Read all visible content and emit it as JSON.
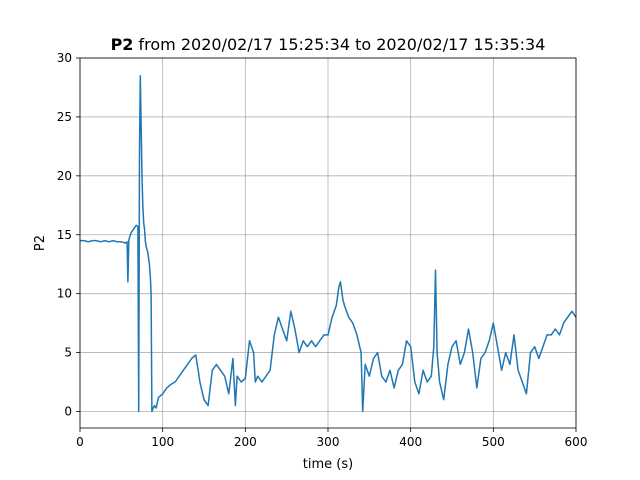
{
  "chart_data": {
    "type": "line",
    "title_bold": "P2",
    "title_rest": " from 2020/02/17 15:25:34 to 2020/02/17 15:35:34",
    "xlabel": "time (s)",
    "ylabel": "P2",
    "xlim": [
      0,
      600
    ],
    "ylim": [
      -1.4,
      30
    ],
    "x_ticks": [
      0,
      100,
      200,
      300,
      400,
      500,
      600
    ],
    "y_ticks": [
      0,
      5,
      10,
      15,
      20,
      25,
      30
    ],
    "grid": true,
    "line_color": "#1f77b4",
    "series": [
      {
        "x": [
          0,
          5,
          10,
          15,
          20,
          25,
          30,
          35,
          40,
          45,
          50,
          55,
          57,
          58,
          59,
          60,
          62,
          65,
          68,
          70,
          71,
          72,
          73,
          74,
          75,
          76,
          77,
          78,
          79,
          80,
          82,
          84,
          85,
          86,
          87,
          88,
          90,
          92,
          95,
          100,
          105,
          110,
          115,
          120,
          125,
          130,
          135,
          140,
          143,
          145,
          150,
          155,
          160,
          165,
          170,
          175,
          180,
          185,
          188,
          190,
          195,
          200,
          205,
          210,
          212,
          215,
          220,
          225,
          230,
          235,
          240,
          245,
          250,
          255,
          260,
          265,
          270,
          275,
          280,
          285,
          290,
          295,
          300,
          305,
          310,
          313,
          315,
          318,
          320,
          325,
          330,
          335,
          340,
          342,
          345,
          350,
          355,
          360,
          365,
          370,
          375,
          380,
          385,
          390,
          395,
          400,
          405,
          410,
          415,
          420,
          425,
          428,
          430,
          432,
          435,
          440,
          445,
          450,
          455,
          460,
          465,
          470,
          475,
          480,
          485,
          490,
          495,
          500,
          505,
          510,
          515,
          520,
          525,
          530,
          535,
          540,
          545,
          550,
          555,
          560,
          565,
          570,
          575,
          580,
          585,
          590,
          595,
          600
        ],
        "y": [
          14.5,
          14.5,
          14.4,
          14.5,
          14.5,
          14.4,
          14.5,
          14.4,
          14.5,
          14.4,
          14.4,
          14.3,
          14.4,
          11.0,
          14.5,
          14.8,
          15.2,
          15.5,
          15.8,
          15.7,
          0.0,
          22.0,
          28.5,
          24.0,
          20.0,
          17.5,
          16.0,
          15.5,
          14.5,
          14.0,
          13.5,
          12.5,
          11.5,
          10.0,
          0.0,
          0.2,
          0.5,
          0.3,
          1.2,
          1.5,
          2.0,
          2.3,
          2.5,
          3.0,
          3.5,
          4.0,
          4.5,
          4.8,
          3.5,
          2.5,
          1.0,
          0.5,
          3.5,
          4.0,
          3.5,
          3.0,
          1.5,
          4.5,
          0.5,
          3.0,
          2.5,
          2.8,
          6.0,
          5.0,
          2.5,
          3.0,
          2.5,
          3.0,
          3.5,
          6.5,
          8.0,
          7.0,
          6.0,
          8.5,
          7.0,
          5.0,
          6.0,
          5.5,
          6.0,
          5.5,
          6.0,
          6.5,
          6.5,
          8.0,
          9.0,
          10.5,
          11.0,
          9.5,
          9.0,
          8.0,
          7.5,
          6.5,
          5.0,
          0.0,
          4.0,
          3.0,
          4.5,
          5.0,
          3.0,
          2.5,
          3.5,
          2.0,
          3.5,
          4.0,
          6.0,
          5.5,
          2.5,
          1.5,
          3.5,
          2.5,
          3.0,
          5.5,
          12.0,
          5.0,
          2.5,
          1.0,
          4.0,
          5.5,
          6.0,
          4.0,
          5.0,
          7.0,
          5.0,
          2.0,
          4.5,
          5.0,
          6.0,
          7.5,
          5.5,
          3.5,
          5.0,
          4.0,
          6.5,
          3.5,
          2.5,
          1.5,
          5.0,
          5.5,
          4.5,
          5.5,
          6.5,
          6.5,
          7.0,
          6.5,
          7.5,
          8.0,
          8.5,
          8.0
        ]
      }
    ]
  }
}
